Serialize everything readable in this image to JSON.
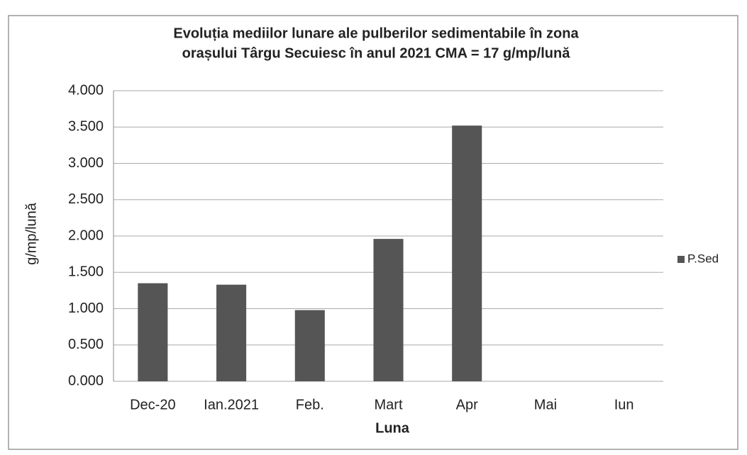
{
  "chart_data": {
    "type": "bar",
    "title": [
      "Evoluția mediilor lunare ale pulberilor sedimentabile în zona",
      "orașului Târgu Secuiesc în anul 2021    CMA = 17 g/mp/lună"
    ],
    "x_label": "Luna",
    "y_label": "g/mp/lună",
    "categories": [
      "Dec-20",
      "Ian.2021",
      "Feb.",
      "Mart",
      "Apr",
      "Mai",
      "Iun"
    ],
    "series": [
      {
        "name": "P.Sed",
        "color": "#555555",
        "values": [
          1.35,
          1.33,
          0.98,
          1.96,
          3.52,
          null,
          null
        ]
      }
    ],
    "ylim": [
      0,
      4
    ],
    "yticks": [
      {
        "value": 0,
        "label": "0.000"
      },
      {
        "value": 0.5,
        "label": "0.500"
      },
      {
        "value": 1,
        "label": "1.000"
      },
      {
        "value": 1.5,
        "label": "1.500"
      },
      {
        "value": 2,
        "label": "2.000"
      },
      {
        "value": 2.5,
        "label": "2.500"
      },
      {
        "value": 3,
        "label": "3.000"
      },
      {
        "value": 3.5,
        "label": "3.500"
      },
      {
        "value": 4,
        "label": "4.000"
      }
    ],
    "grid": true,
    "legend": "right"
  }
}
